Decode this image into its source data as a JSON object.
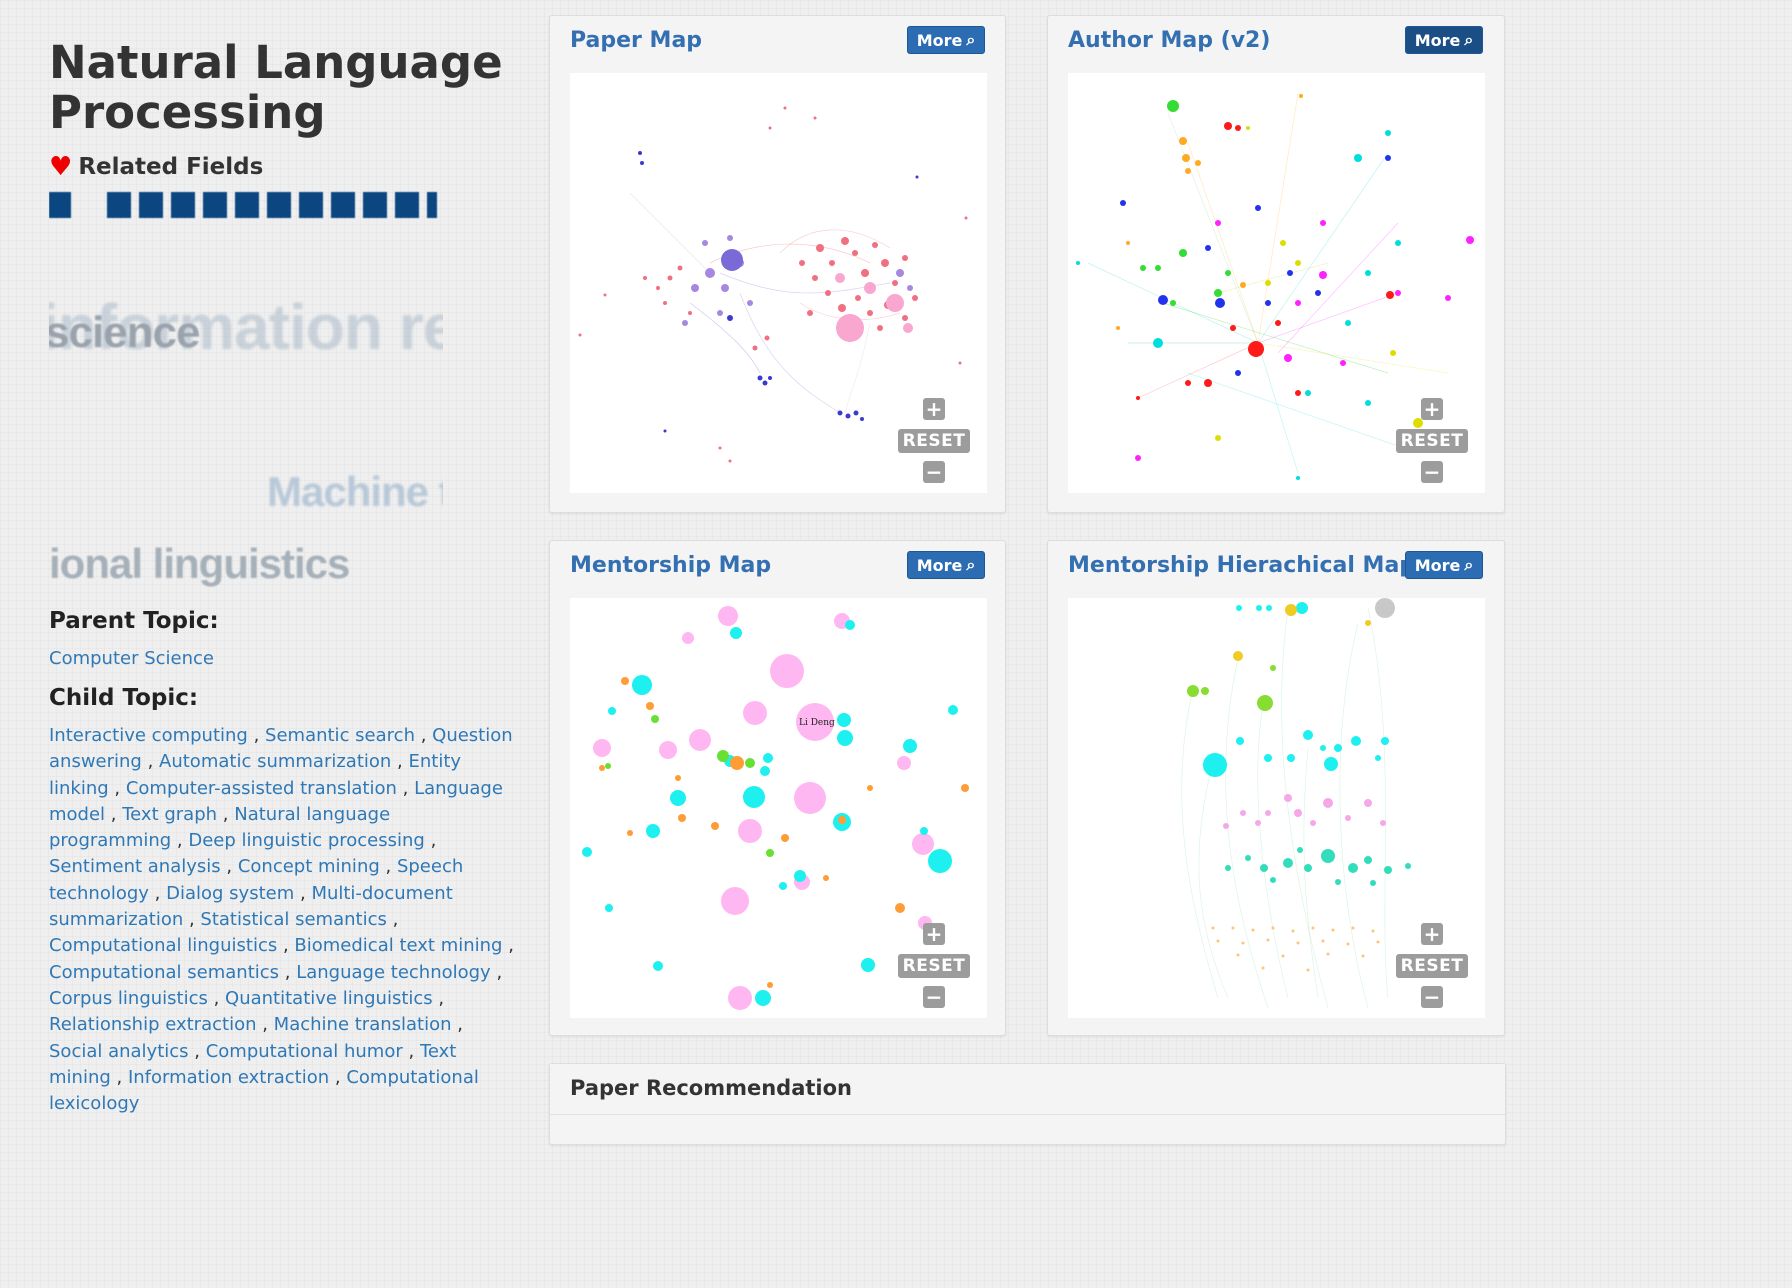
{
  "page": {
    "title": "Natural Language Processing",
    "related_fields_label": "Related Fields",
    "heart_icon": "heart-icon"
  },
  "word_cloud": {
    "words": [
      "science",
      "information retrie",
      "Machine t",
      "ional linguistics"
    ]
  },
  "topics": {
    "parent_label": "Parent Topic:",
    "parent": "Computer Science",
    "child_label": "Child Topic:",
    "children": [
      "Interactive computing",
      "Semantic search",
      "Question answering",
      "Automatic summarization",
      "Entity linking",
      "Computer-assisted translation",
      "Language model",
      "Text graph",
      "Natural language programming",
      "Deep linguistic processing",
      "Sentiment analysis",
      "Concept mining",
      "Speech technology",
      "Dialog system",
      "Multi-document summarization",
      "Statistical semantics",
      "Computational linguistics",
      "Biomedical text mining",
      "Computational semantics",
      "Language technology",
      "Corpus linguistics",
      "Quantitative linguistics",
      "Relationship extraction",
      "Machine translation",
      "Social analytics",
      "Computational humor",
      "Text mining",
      "Information extraction",
      "Computational lexicology"
    ]
  },
  "panels": {
    "paper_map": {
      "title": "Paper Map",
      "more": "More"
    },
    "author_map": {
      "title": "Author Map (v2)",
      "more": "More"
    },
    "mentorship_map": {
      "title": "Mentorship Map",
      "more": "More",
      "node_label": "Li Deng"
    },
    "mentorship_hier": {
      "title": "Mentorship Hierachical Map",
      "more": "More"
    }
  },
  "zoom_controls": {
    "plus": "+",
    "reset": "RESET",
    "minus": "−"
  },
  "paper_recommendation": {
    "title": "Paper Recommendation"
  },
  "colors": {
    "link": "#2f78b6",
    "panel_title": "#3470b1",
    "more_button": "#2b6cb3",
    "heart": "#ee0000"
  }
}
